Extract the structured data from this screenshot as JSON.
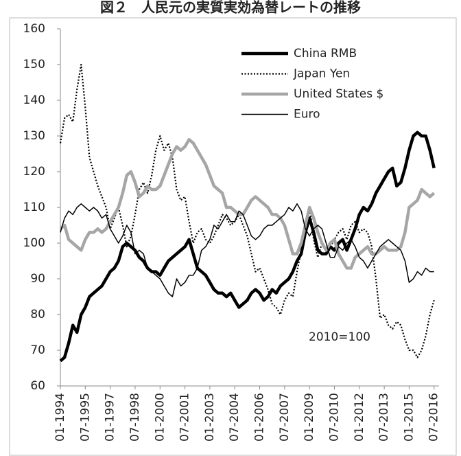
{
  "chart_data": {
    "type": "line",
    "title": "図２　人民元の実質実効為替レートの推移",
    "annotation": "2010=100",
    "legend": "top-right",
    "x": [
      1994,
      1994.25,
      1994.5,
      1994.75,
      1995,
      1995.25,
      1995.5,
      1995.75,
      1996,
      1996.25,
      1996.5,
      1996.75,
      1997,
      1997.25,
      1997.5,
      1997.75,
      1998,
      1998.25,
      1998.5,
      1998.75,
      1999,
      1999.25,
      1999.5,
      1999.75,
      2000,
      2000.25,
      2000.5,
      2000.75,
      2001,
      2001.25,
      2001.5,
      2001.75,
      2002,
      2002.25,
      2002.5,
      2002.75,
      2003,
      2003.25,
      2003.5,
      2003.75,
      2004,
      2004.25,
      2004.5,
      2004.75,
      2005,
      2005.25,
      2005.5,
      2005.75,
      2006,
      2006.25,
      2006.5,
      2006.75,
      2007,
      2007.25,
      2007.5,
      2007.75,
      2008,
      2008.25,
      2008.5,
      2008.75,
      2009,
      2009.25,
      2009.5,
      2009.75,
      2010,
      2010.25,
      2010.5,
      2010.75,
      2011,
      2011.25,
      2011.5,
      2011.75,
      2012,
      2012.25,
      2012.5,
      2012.75,
      2013,
      2013.25,
      2013.5,
      2013.75,
      2014,
      2014.25,
      2014.5,
      2014.75,
      2015,
      2015.25,
      2015.5,
      2015.75,
      2016,
      2016.25,
      2016.5
    ],
    "xlim": [
      1994,
      2016.8
    ],
    "xticks": [
      {
        "value": 1994,
        "label": "01-1994"
      },
      {
        "value": 1995.5,
        "label": "07-1995"
      },
      {
        "value": 1997,
        "label": "01-1997"
      },
      {
        "value": 1998.5,
        "label": "07-1998"
      },
      {
        "value": 2000,
        "label": "01-2000"
      },
      {
        "value": 2001.5,
        "label": "07-2001"
      },
      {
        "value": 2003,
        "label": "01-2003"
      },
      {
        "value": 2004.5,
        "label": "07-2004"
      },
      {
        "value": 2006,
        "label": "01-2006"
      },
      {
        "value": 2007.5,
        "label": "07-2007"
      },
      {
        "value": 2009,
        "label": "01-2009"
      },
      {
        "value": 2010.5,
        "label": "07-2010"
      },
      {
        "value": 2012,
        "label": "01-2012"
      },
      {
        "value": 2013.5,
        "label": "07-2013"
      },
      {
        "value": 2015,
        "label": "01-2015"
      },
      {
        "value": 2016.5,
        "label": "07-2016"
      }
    ],
    "ylim": [
      60,
      160
    ],
    "yticks": [
      60,
      70,
      80,
      90,
      100,
      110,
      120,
      130,
      140,
      150,
      160
    ],
    "grid": false,
    "series": [
      {
        "name": "China RMB",
        "color": "#000000",
        "linestyle": "thick",
        "values": [
          67,
          68,
          72,
          77,
          75,
          80,
          82,
          85,
          86,
          87,
          88,
          90,
          92,
          93,
          95,
          99,
          100,
          99,
          98,
          96,
          95,
          93,
          92,
          92,
          91,
          93,
          95,
          96,
          97,
          98,
          99,
          101,
          97,
          93,
          92,
          91,
          89,
          87,
          86,
          86,
          85,
          86,
          84,
          82,
          83,
          84,
          86,
          87,
          86,
          84,
          85,
          87,
          86,
          88,
          89,
          90,
          92,
          95,
          97,
          103,
          107,
          103,
          98,
          97,
          97,
          99,
          98,
          100,
          101,
          98,
          101,
          104,
          108,
          110,
          109,
          111,
          114,
          116,
          118,
          120,
          121,
          116,
          117,
          121,
          126,
          130,
          131,
          130,
          130,
          126,
          121
        ]
      },
      {
        "name": "Japan Yen",
        "color": "#000000",
        "linestyle": "dotted",
        "values": [
          128,
          135,
          136,
          134,
          143,
          150,
          138,
          124,
          120,
          116,
          113,
          110,
          104,
          107,
          110,
          105,
          99,
          102,
          108,
          115,
          117,
          114,
          119,
          126,
          130,
          126,
          128,
          124,
          115,
          112,
          113,
          106,
          100,
          103,
          104,
          101,
          100,
          102,
          105,
          108,
          107,
          105,
          106,
          108,
          105,
          102,
          97,
          92,
          93,
          90,
          87,
          83,
          82,
          80,
          84,
          86,
          85,
          92,
          98,
          105,
          110,
          101,
          96,
          100,
          98,
          99,
          101,
          103,
          104,
          101,
          105,
          106,
          103,
          104,
          103,
          99,
          90,
          79,
          80,
          77,
          76,
          78,
          77,
          73,
          70,
          70,
          68,
          70,
          74,
          80,
          84
        ]
      },
      {
        "name": "United States $",
        "color": "#a6a6a6",
        "linestyle": "thick",
        "values": [
          104,
          105,
          101,
          100,
          99,
          98,
          101,
          103,
          103,
          104,
          103,
          104,
          106,
          108,
          110,
          114,
          119,
          120,
          117,
          113,
          114,
          116,
          115,
          115,
          116,
          119,
          122,
          125,
          127,
          126,
          127,
          129,
          128,
          126,
          124,
          122,
          119,
          116,
          115,
          114,
          110,
          110,
          109,
          108,
          108,
          110,
          112,
          113,
          112,
          111,
          110,
          108,
          108,
          107,
          105,
          101,
          97,
          97,
          100,
          105,
          110,
          107,
          103,
          100,
          98,
          100,
          101,
          97,
          95,
          93,
          93,
          96,
          97,
          98,
          99,
          97,
          97,
          98,
          99,
          98,
          98,
          98,
          99,
          103,
          110,
          111,
          112,
          115,
          114,
          113,
          114
        ]
      },
      {
        "name": "Euro",
        "color": "#000000",
        "linestyle": "thin",
        "values": [
          103,
          107,
          109,
          108,
          110,
          111,
          110,
          109,
          110,
          109,
          107,
          108,
          104,
          102,
          100,
          102,
          105,
          103,
          97,
          98,
          97,
          93,
          92,
          91,
          90,
          88,
          86,
          85,
          90,
          88,
          89,
          91,
          91,
          93,
          98,
          99,
          101,
          105,
          104,
          106,
          108,
          106,
          106,
          109,
          108,
          105,
          102,
          101,
          102,
          104,
          105,
          105,
          106,
          107,
          108,
          110,
          109,
          111,
          109,
          104,
          102,
          104,
          105,
          104,
          100,
          96,
          96,
          99,
          98,
          100,
          101,
          99,
          96,
          95,
          93,
          95,
          97,
          99,
          100,
          101,
          100,
          99,
          98,
          95,
          89,
          90,
          92,
          91,
          93,
          92,
          92
        ]
      }
    ]
  }
}
